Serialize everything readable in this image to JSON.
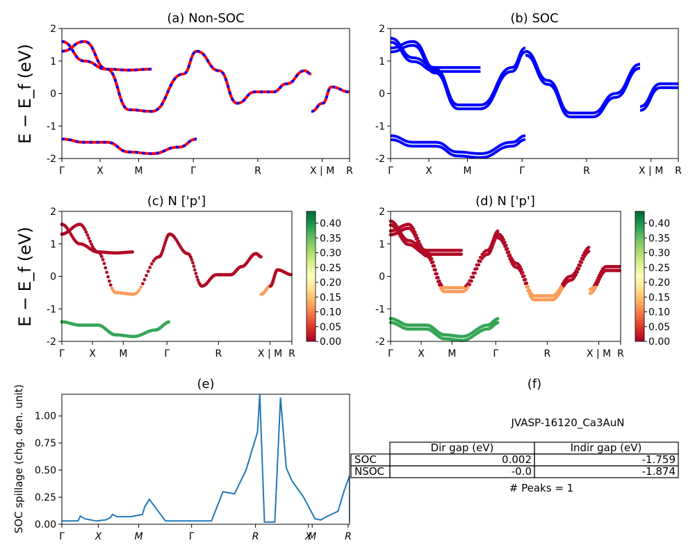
{
  "kpath_labels": [
    "Γ",
    "X",
    "M",
    "Γ",
    "R",
    "X | M",
    "R"
  ],
  "ylabel_band": "E − E_f (eV)",
  "panels": {
    "a": {
      "title": "(a) Non-SOC"
    },
    "b": {
      "title": "(b) SOC"
    },
    "c": {
      "title": "(c)  N ['p']"
    },
    "d": {
      "title": "(d) N ['p']"
    },
    "e": {
      "title": "(e)",
      "ylabel": "SOC spillage (chg. den. unit)",
      "xticks": [
        "Γ",
        "X",
        "M",
        "Γ",
        "R",
        "X",
        "M",
        "R"
      ]
    },
    "f": {
      "title": "(f)",
      "material": "JVASP-16120_Ca3AuN",
      "peaks": "# Peaks = 1"
    }
  },
  "colorbar": {
    "ticks": [
      "0.40",
      "0.35",
      "0.30",
      "0.25",
      "0.20",
      "0.15",
      "0.10",
      "0.05",
      "0.00"
    ],
    "range": [
      0,
      0.44
    ],
    "colormap": "RdYlGn"
  },
  "gap_table": {
    "columns": [
      "Dir gap (eV)",
      "Indir gap (eV)"
    ],
    "rows": [
      {
        "label": "SOC",
        "dir": "0.002",
        "indir": "-1.759"
      },
      {
        "label": "NSOC",
        "dir": "-0.0",
        "indir": "-1.874"
      }
    ]
  },
  "colors": {
    "nsoc_band": "#ff0000",
    "soc_band": "#0000ff",
    "spillage": "#1f77b4"
  },
  "chart_data": [
    {
      "type": "line",
      "title": "(a) Non-SOC",
      "ylabel": "E − E_f (eV)",
      "ylim": [
        -2,
        2
      ],
      "yticks": [
        -2,
        -1,
        0,
        1,
        2
      ],
      "xticks": [
        "Γ",
        "X",
        "M",
        "Γ",
        "R",
        "X | M",
        "R"
      ],
      "series": [
        {
          "x": [
            0,
            0.5,
            1,
            1.5,
            2
          ],
          "y": [
            1.6,
            1.0,
            0.75,
            0.72,
            0.75
          ]
        },
        {
          "x": [
            0,
            0.5,
            1,
            1.5,
            2,
            2.7,
            3
          ],
          "y": [
            1.3,
            1.6,
            0.75,
            -0.5,
            -0.55,
            0.6,
            1.3
          ]
        },
        {
          "x": [
            0,
            0.5,
            1,
            1.5,
            2,
            2.6,
            3
          ],
          "y": [
            -1.4,
            -1.5,
            -1.5,
            -1.8,
            -1.85,
            -1.65,
            -1.4
          ]
        },
        {
          "x": [
            3,
            3.5,
            3.9,
            4.3,
            4.7,
            5.0,
            5.4,
            5.55
          ],
          "y": [
            1.3,
            0.7,
            -0.3,
            0.05,
            0.05,
            0.3,
            0.7,
            0.6
          ]
        },
        {
          "x": [
            5.55,
            5.8,
            6.0,
            6.4
          ],
          "y": [
            -0.55,
            -0.3,
            0.2,
            0.05
          ]
        }
      ]
    },
    {
      "type": "line",
      "title": "(b) SOC",
      "ylim": [
        -2,
        2
      ],
      "yticks": [
        -2,
        -1,
        0,
        1,
        2
      ],
      "xticks": [
        "Γ",
        "X",
        "M",
        "Γ",
        "R",
        "X | M",
        "R"
      ],
      "series": [
        {
          "x": [
            0,
            0.5,
            1,
            1.5,
            2
          ],
          "y": [
            1.7,
            1.1,
            0.8,
            0.8,
            0.8
          ]
        },
        {
          "x": [
            0,
            0.5,
            1,
            1.5,
            2,
            2.7,
            3
          ],
          "y": [
            1.4,
            1.6,
            0.75,
            -0.35,
            -0.35,
            0.8,
            1.4
          ]
        },
        {
          "x": [
            0,
            0.5,
            1,
            1.5,
            2,
            2.7,
            3
          ],
          "y": [
            -1.3,
            -1.5,
            -1.5,
            -1.8,
            -1.85,
            -1.5,
            -1.3
          ]
        },
        {
          "x": [
            3,
            3.5,
            4.0,
            4.5,
            5.0,
            5.55
          ],
          "y": [
            1.3,
            0.4,
            -0.6,
            -0.6,
            0.0,
            0.9
          ]
        },
        {
          "x": [
            5.55,
            6.0,
            6.4
          ],
          "y": [
            -0.4,
            0.3,
            0.3
          ]
        }
      ]
    },
    {
      "type": "scatter",
      "title": "(c)  N ['p']",
      "ylim": [
        -2,
        2
      ],
      "colorbar_range": [
        0,
        0.44
      ]
    },
    {
      "type": "scatter",
      "title": "(d) N ['p']",
      "ylim": [
        -2,
        2
      ],
      "colorbar_range": [
        0,
        0.44
      ]
    },
    {
      "type": "line",
      "title": "(e)",
      "ylabel": "SOC spillage (chg. den. unit)",
      "ylim": [
        0,
        1.2
      ],
      "yticks": [
        0.0,
        0.25,
        0.5,
        0.75,
        1.0
      ],
      "xticks": [
        "Γ",
        "X",
        "M",
        "Γ",
        "R",
        "X",
        "M",
        "R"
      ],
      "series": [
        {
          "name": "spillage",
          "x": [
            0,
            0.06,
            0.14,
            0.16,
            0.2,
            0.3,
            0.38,
            0.42,
            0.44,
            0.48,
            0.6,
            0.7,
            0.72,
            0.76,
            0.9,
            1.1,
            1.3,
            1.4,
            1.5,
            1.6,
            1.7,
            1.72,
            1.76,
            1.8,
            1.85,
            1.9,
            1.95,
            2.0,
            2.1,
            2.2,
            2.25,
            2.3,
            2.4,
            2.45,
            2.5
          ],
          "y": [
            0.03,
            0.03,
            0.03,
            0.075,
            0.05,
            0.03,
            0.04,
            0.06,
            0.09,
            0.07,
            0.07,
            0.09,
            0.16,
            0.23,
            0.03,
            0.03,
            0.03,
            0.3,
            0.28,
            0.5,
            0.85,
            1.2,
            0.02,
            0.02,
            0.02,
            1.17,
            0.52,
            0.4,
            0.25,
            0.05,
            0.04,
            0.07,
            0.12,
            0.3,
            0.45
          ]
        }
      ]
    }
  ]
}
